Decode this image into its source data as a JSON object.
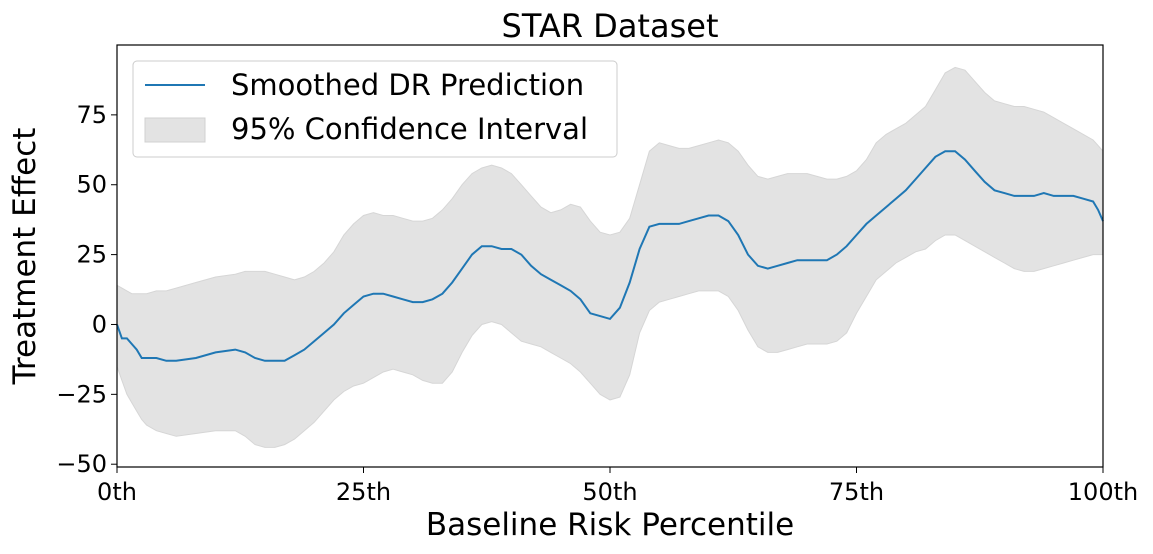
{
  "chart_data": {
    "type": "line",
    "title": "STAR Dataset",
    "xlabel": "Baseline Risk Percentile",
    "ylabel": "Treatment Effect",
    "xlim": [
      0,
      100
    ],
    "ylim": [
      -51,
      100
    ],
    "x_ticks": [
      {
        "value": 0,
        "label": "0th"
      },
      {
        "value": 25,
        "label": "25th"
      },
      {
        "value": 50,
        "label": "50th"
      },
      {
        "value": 75,
        "label": "75th"
      },
      {
        "value": 100,
        "label": "100th"
      }
    ],
    "y_ticks": [
      {
        "value": -50,
        "label": "−50"
      },
      {
        "value": -25,
        "label": "−25"
      },
      {
        "value": 0,
        "label": "0"
      },
      {
        "value": 25,
        "label": "25"
      },
      {
        "value": 50,
        "label": "50"
      },
      {
        "value": 75,
        "label": "75"
      }
    ],
    "legend": {
      "location": "top-left",
      "entries": [
        {
          "label": "Smoothed DR Prediction",
          "kind": "line",
          "color": "#1f77b4"
        },
        {
          "label": "95% Confidence Interval",
          "kind": "band",
          "color": "#e3e3e3"
        }
      ]
    },
    "series": [
      {
        "name": "Smoothed DR Prediction",
        "color": "#1f77b4",
        "x": [
          0,
          0.5,
          1,
          1.5,
          2,
          2.5,
          3,
          3.5,
          4,
          5,
          6,
          8,
          10,
          12,
          13,
          14,
          15,
          16,
          17,
          18,
          19,
          20,
          21,
          22,
          23,
          24,
          25,
          26,
          27,
          28,
          29,
          30,
          31,
          32,
          33,
          34,
          35,
          36,
          37,
          38,
          39,
          40,
          41,
          42,
          43,
          44,
          45,
          46,
          47,
          48,
          49,
          50,
          51,
          52,
          53,
          54,
          55,
          56,
          57,
          58,
          59,
          60,
          61,
          62,
          63,
          64,
          65,
          66,
          67,
          68,
          69,
          70,
          71,
          72,
          73,
          74,
          75,
          76,
          77,
          78,
          79,
          80,
          81,
          82,
          83,
          84,
          85,
          86,
          87,
          88,
          89,
          90,
          91,
          92,
          93,
          94,
          95,
          96,
          97,
          98,
          99,
          99.5,
          100
        ],
        "y": [
          0,
          -5,
          -5,
          -7,
          -9,
          -12,
          -12,
          -12,
          -12,
          -13,
          -13,
          -12,
          -10,
          -9,
          -10,
          -12,
          -13,
          -13,
          -13,
          -11,
          -9,
          -6,
          -3,
          0,
          4,
          7,
          10,
          11,
          11,
          10,
          9,
          8,
          8,
          9,
          11,
          15,
          20,
          25,
          28,
          28,
          27,
          27,
          25,
          21,
          18,
          16,
          14,
          12,
          9,
          4,
          3,
          2,
          6,
          15,
          27,
          35,
          36,
          36,
          36,
          37,
          38,
          39,
          39,
          37,
          32,
          25,
          21,
          20,
          21,
          22,
          23,
          23,
          23,
          23,
          25,
          28,
          32,
          36,
          39,
          42,
          45,
          48,
          52,
          56,
          60,
          62,
          62,
          59,
          55,
          51,
          48,
          47,
          46,
          46,
          46,
          47,
          46,
          46,
          46,
          45,
          44,
          41,
          37
        ]
      }
    ],
    "band": {
      "name": "95% Confidence Interval",
      "color": "#e3e3e3",
      "x": [
        0,
        0.5,
        1,
        1.5,
        2,
        2.5,
        3,
        4,
        5,
        6,
        8,
        10,
        12,
        13,
        14,
        15,
        16,
        17,
        18,
        19,
        20,
        21,
        22,
        23,
        24,
        25,
        26,
        27,
        28,
        29,
        30,
        31,
        32,
        33,
        34,
        35,
        36,
        37,
        38,
        39,
        40,
        41,
        42,
        43,
        44,
        45,
        46,
        47,
        48,
        49,
        50,
        51,
        52,
        53,
        54,
        55,
        56,
        57,
        58,
        59,
        60,
        61,
        62,
        63,
        64,
        65,
        66,
        67,
        68,
        69,
        70,
        71,
        72,
        73,
        74,
        75,
        76,
        77,
        78,
        79,
        80,
        81,
        82,
        83,
        84,
        85,
        86,
        87,
        88,
        89,
        90,
        91,
        92,
        93,
        94,
        95,
        96,
        97,
        98,
        99,
        99.5,
        100
      ],
      "upper": [
        14,
        13,
        12,
        11,
        11,
        11,
        11,
        12,
        12,
        13,
        15,
        17,
        18,
        19,
        19,
        19,
        18,
        17,
        16,
        17,
        19,
        22,
        26,
        32,
        36,
        39,
        40,
        39,
        39,
        38,
        37,
        37,
        38,
        41,
        45,
        50,
        54,
        56,
        57,
        56,
        54,
        50,
        46,
        42,
        40,
        41,
        43,
        42,
        37,
        33,
        32,
        33,
        38,
        50,
        62,
        65,
        64,
        63,
        63,
        64,
        65,
        66,
        65,
        62,
        57,
        53,
        52,
        53,
        54,
        54,
        54,
        53,
        52,
        52,
        53,
        55,
        59,
        65,
        68,
        70,
        72,
        75,
        78,
        84,
        90,
        92,
        91,
        87,
        83,
        80,
        79,
        78,
        78,
        77,
        76,
        74,
        72,
        70,
        68,
        66,
        64,
        62
      ],
      "lower": [
        -15,
        -20,
        -25,
        -28,
        -31,
        -34,
        -36,
        -38,
        -39,
        -40,
        -39,
        -38,
        -38,
        -40,
        -43,
        -44,
        -44,
        -43,
        -41,
        -38,
        -35,
        -31,
        -27,
        -24,
        -22,
        -21,
        -19,
        -17,
        -16,
        -17,
        -18,
        -20,
        -21,
        -21,
        -17,
        -10,
        -4,
        0,
        1,
        0,
        -3,
        -6,
        -7,
        -8,
        -10,
        -12,
        -14,
        -17,
        -21,
        -25,
        -27,
        -26,
        -18,
        -3,
        5,
        8,
        9,
        10,
        11,
        12,
        12,
        12,
        10,
        5,
        -2,
        -8,
        -10,
        -10,
        -9,
        -8,
        -7,
        -7,
        -7,
        -6,
        -3,
        4,
        10,
        16,
        19,
        22,
        24,
        26,
        27,
        30,
        32,
        32,
        30,
        28,
        26,
        24,
        22,
        20,
        19,
        19,
        20,
        21,
        22,
        23,
        24,
        25,
        25,
        25
      ]
    }
  }
}
